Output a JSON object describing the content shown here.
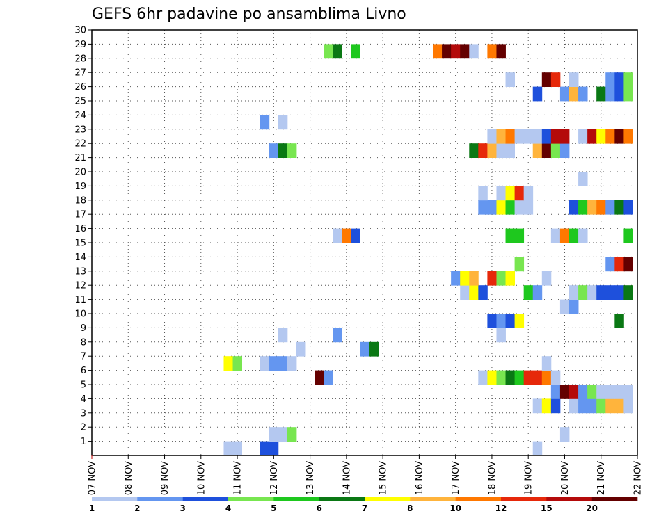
{
  "chart_data": {
    "type": "heatmap",
    "title": "GEFS 6hr padavine po ansamblima Livno",
    "xlabel": "",
    "ylabel": "",
    "x_ticks": [
      "07 NOV",
      "08 NOV",
      "09 NOV",
      "10 NOV",
      "11 NOV",
      "12 NOV",
      "13 NOV",
      "14 NOV",
      "15 NOV",
      "16 NOV",
      "17 NOV",
      "18 NOV",
      "19 NOV",
      "20 NOV",
      "21 NOV",
      "22 NOV"
    ],
    "y_ticks": [
      "1",
      "2",
      "3",
      "4",
      "5",
      "6",
      "7",
      "8",
      "9",
      "10",
      "11",
      "12",
      "13",
      "14",
      "15",
      "16",
      "17",
      "18",
      "19",
      "20",
      "21",
      "22",
      "23",
      "24",
      "25",
      "26",
      "27",
      "28",
      "29",
      "30"
    ],
    "ylim": [
      0,
      30
    ],
    "grid": true,
    "legend": {
      "placement": "bottom",
      "ticks": [
        "1",
        "2",
        "3",
        "4",
        "5",
        "6",
        "7",
        "8",
        "10",
        "12",
        "15",
        "20"
      ],
      "colors": [
        "#b4c8f0",
        "#6496f0",
        "#1e50dc",
        "#78e650",
        "#1ec81e",
        "#0a7814",
        "#ffff00",
        "#ffb43c",
        "#ff7800",
        "#e6280a",
        "#b40a0a",
        "#640000"
      ]
    },
    "note_x_units": "x = days since 07 NOV 00Z, 6-hour steps",
    "cells": [
      {
        "y": 0,
        "x": 3.75,
        "v": 1
      },
      {
        "y": 0,
        "x": 4.0,
        "v": 1
      },
      {
        "y": 0,
        "x": 4.75,
        "v": 3
      },
      {
        "y": 0,
        "x": 5.0,
        "v": 3
      },
      {
        "y": 0,
        "x": 12.25,
        "v": 1
      },
      {
        "y": 1,
        "x": 5.0,
        "v": 1
      },
      {
        "y": 1,
        "x": 5.25,
        "v": 1
      },
      {
        "y": 1,
        "x": 5.5,
        "v": 4
      },
      {
        "y": 1,
        "x": 13.0,
        "v": 1
      },
      {
        "y": 3,
        "x": 12.25,
        "v": 1
      },
      {
        "y": 3,
        "x": 12.5,
        "v": 7
      },
      {
        "y": 3,
        "x": 12.75,
        "v": 3
      },
      {
        "y": 3,
        "x": 13.25,
        "v": 1
      },
      {
        "y": 3,
        "x": 13.5,
        "v": 2
      },
      {
        "y": 3,
        "x": 13.75,
        "v": 2
      },
      {
        "y": 3,
        "x": 14.0,
        "v": 4
      },
      {
        "y": 3,
        "x": 14.25,
        "v": 9
      },
      {
        "y": 3,
        "x": 14.5,
        "v": 8
      },
      {
        "y": 3,
        "x": 14.75,
        "v": 1
      },
      {
        "y": 4,
        "x": 12.75,
        "v": 2
      },
      {
        "y": 4,
        "x": 13.0,
        "v": 20
      },
      {
        "y": 4,
        "x": 13.25,
        "v": 15
      },
      {
        "y": 4,
        "x": 13.5,
        "v": 2
      },
      {
        "y": 4,
        "x": 13.75,
        "v": 4
      },
      {
        "y": 4,
        "x": 14.0,
        "v": 1
      },
      {
        "y": 4,
        "x": 14.25,
        "v": 1
      },
      {
        "y": 4,
        "x": 14.5,
        "v": 1
      },
      {
        "y": 4,
        "x": 14.75,
        "v": 1
      },
      {
        "y": 5,
        "x": 6.25,
        "v": 20
      },
      {
        "y": 5,
        "x": 6.5,
        "v": 2
      },
      {
        "y": 5,
        "x": 10.75,
        "v": 1
      },
      {
        "y": 5,
        "x": 11.0,
        "v": 7
      },
      {
        "y": 5,
        "x": 11.25,
        "v": 4
      },
      {
        "y": 5,
        "x": 11.5,
        "v": 6
      },
      {
        "y": 5,
        "x": 11.75,
        "v": 5
      },
      {
        "y": 5,
        "x": 12.0,
        "v": 12
      },
      {
        "y": 5,
        "x": 12.25,
        "v": 12
      },
      {
        "y": 5,
        "x": 12.5,
        "v": 10
      },
      {
        "y": 5,
        "x": 12.75,
        "v": 1
      },
      {
        "y": 6,
        "x": 3.75,
        "v": 7
      },
      {
        "y": 6,
        "x": 4.0,
        "v": 4
      },
      {
        "y": 6,
        "x": 4.75,
        "v": 1
      },
      {
        "y": 6,
        "x": 5.0,
        "v": 2
      },
      {
        "y": 6,
        "x": 5.25,
        "v": 2
      },
      {
        "y": 6,
        "x": 5.5,
        "v": 1
      },
      {
        "y": 6,
        "x": 12.5,
        "v": 1
      },
      {
        "y": 7,
        "x": 5.75,
        "v": 1
      },
      {
        "y": 7,
        "x": 7.5,
        "v": 2
      },
      {
        "y": 7,
        "x": 7.75,
        "v": 6
      },
      {
        "y": 8,
        "x": 5.25,
        "v": 1
      },
      {
        "y": 8,
        "x": 6.75,
        "v": 2
      },
      {
        "y": 8,
        "x": 11.25,
        "v": 1
      },
      {
        "y": 9,
        "x": 11.0,
        "v": 3
      },
      {
        "y": 9,
        "x": 11.25,
        "v": 2
      },
      {
        "y": 9,
        "x": 11.5,
        "v": 3
      },
      {
        "y": 9,
        "x": 11.75,
        "v": 7
      },
      {
        "y": 9,
        "x": 14.5,
        "v": 6
      },
      {
        "y": 10,
        "x": 13.0,
        "v": 1
      },
      {
        "y": 10,
        "x": 13.25,
        "v": 2
      },
      {
        "y": 11,
        "x": 10.25,
        "v": 1
      },
      {
        "y": 11,
        "x": 10.5,
        "v": 7
      },
      {
        "y": 11,
        "x": 10.75,
        "v": 3
      },
      {
        "y": 11,
        "x": 12.0,
        "v": 5
      },
      {
        "y": 11,
        "x": 12.25,
        "v": 2
      },
      {
        "y": 11,
        "x": 13.25,
        "v": 1
      },
      {
        "y": 11,
        "x": 13.5,
        "v": 4
      },
      {
        "y": 11,
        "x": 13.75,
        "v": 1
      },
      {
        "y": 11,
        "x": 14.0,
        "v": 3
      },
      {
        "y": 11,
        "x": 14.25,
        "v": 3
      },
      {
        "y": 11,
        "x": 14.5,
        "v": 3
      },
      {
        "y": 11,
        "x": 14.75,
        "v": 6
      },
      {
        "y": 12,
        "x": 10.0,
        "v": 2
      },
      {
        "y": 12,
        "x": 10.25,
        "v": 7
      },
      {
        "y": 12,
        "x": 10.5,
        "v": 8
      },
      {
        "y": 12,
        "x": 11.0,
        "v": 12
      },
      {
        "y": 12,
        "x": 11.25,
        "v": 4
      },
      {
        "y": 12,
        "x": 11.5,
        "v": 7
      },
      {
        "y": 12,
        "x": 12.5,
        "v": 1
      },
      {
        "y": 13,
        "x": 11.75,
        "v": 4
      },
      {
        "y": 13,
        "x": 14.25,
        "v": 2
      },
      {
        "y": 13,
        "x": 14.5,
        "v": 12
      },
      {
        "y": 13,
        "x": 14.75,
        "v": 20
      },
      {
        "y": 15,
        "x": 6.75,
        "v": 1
      },
      {
        "y": 15,
        "x": 7.0,
        "v": 10
      },
      {
        "y": 15,
        "x": 7.25,
        "v": 3
      },
      {
        "y": 15,
        "x": 11.5,
        "v": 5
      },
      {
        "y": 15,
        "x": 11.75,
        "v": 5
      },
      {
        "y": 15,
        "x": 12.75,
        "v": 1
      },
      {
        "y": 15,
        "x": 13.0,
        "v": 10
      },
      {
        "y": 15,
        "x": 13.25,
        "v": 5
      },
      {
        "y": 15,
        "x": 13.5,
        "v": 1
      },
      {
        "y": 15,
        "x": 14.75,
        "v": 5
      },
      {
        "y": 17,
        "x": 10.75,
        "v": 2
      },
      {
        "y": 17,
        "x": 11.0,
        "v": 2
      },
      {
        "y": 17,
        "x": 11.25,
        "v": 7
      },
      {
        "y": 17,
        "x": 11.5,
        "v": 5
      },
      {
        "y": 17,
        "x": 11.75,
        "v": 1
      },
      {
        "y": 17,
        "x": 12.0,
        "v": 1
      },
      {
        "y": 17,
        "x": 13.25,
        "v": 3
      },
      {
        "y": 17,
        "x": 13.5,
        "v": 5
      },
      {
        "y": 17,
        "x": 13.75,
        "v": 8
      },
      {
        "y": 17,
        "x": 14.0,
        "v": 10
      },
      {
        "y": 17,
        "x": 14.25,
        "v": 2
      },
      {
        "y": 17,
        "x": 14.5,
        "v": 6
      },
      {
        "y": 17,
        "x": 14.75,
        "v": 3
      },
      {
        "y": 18,
        "x": 10.75,
        "v": 1
      },
      {
        "y": 18,
        "x": 11.25,
        "v": 1
      },
      {
        "y": 18,
        "x": 11.5,
        "v": 7
      },
      {
        "y": 18,
        "x": 11.75,
        "v": 12
      },
      {
        "y": 18,
        "x": 12.0,
        "v": 1
      },
      {
        "y": 19,
        "x": 13.5,
        "v": 1
      },
      {
        "y": 21,
        "x": 5.0,
        "v": 2
      },
      {
        "y": 21,
        "x": 5.25,
        "v": 6
      },
      {
        "y": 21,
        "x": 5.5,
        "v": 4
      },
      {
        "y": 21,
        "x": 10.5,
        "v": 6
      },
      {
        "y": 21,
        "x": 10.75,
        "v": 12
      },
      {
        "y": 21,
        "x": 11.0,
        "v": 8
      },
      {
        "y": 21,
        "x": 11.25,
        "v": 1
      },
      {
        "y": 21,
        "x": 11.5,
        "v": 1
      },
      {
        "y": 21,
        "x": 12.25,
        "v": 8
      },
      {
        "y": 21,
        "x": 12.5,
        "v": 20
      },
      {
        "y": 21,
        "x": 12.75,
        "v": 4
      },
      {
        "y": 21,
        "x": 13.0,
        "v": 2
      },
      {
        "y": 22,
        "x": 11.0,
        "v": 1
      },
      {
        "y": 22,
        "x": 11.25,
        "v": 8
      },
      {
        "y": 22,
        "x": 11.5,
        "v": 10
      },
      {
        "y": 22,
        "x": 11.75,
        "v": 1
      },
      {
        "y": 22,
        "x": 12.0,
        "v": 1
      },
      {
        "y": 22,
        "x": 12.25,
        "v": 1
      },
      {
        "y": 22,
        "x": 12.5,
        "v": 3
      },
      {
        "y": 22,
        "x": 12.75,
        "v": 15
      },
      {
        "y": 22,
        "x": 13.0,
        "v": 15
      },
      {
        "y": 22,
        "x": 13.5,
        "v": 1
      },
      {
        "y": 22,
        "x": 13.75,
        "v": 15
      },
      {
        "y": 22,
        "x": 14.0,
        "v": 7
      },
      {
        "y": 22,
        "x": 14.25,
        "v": 10
      },
      {
        "y": 22,
        "x": 14.5,
        "v": 20
      },
      {
        "y": 22,
        "x": 14.75,
        "v": 10
      },
      {
        "y": 23,
        "x": 4.75,
        "v": 2
      },
      {
        "y": 23,
        "x": 5.25,
        "v": 1
      },
      {
        "y": 25,
        "x": 12.25,
        "v": 3
      },
      {
        "y": 25,
        "x": 13.0,
        "v": 2
      },
      {
        "y": 25,
        "x": 13.25,
        "v": 8
      },
      {
        "y": 25,
        "x": 13.5,
        "v": 2
      },
      {
        "y": 25,
        "x": 14.0,
        "v": 6
      },
      {
        "y": 25,
        "x": 14.25,
        "v": 2
      },
      {
        "y": 25,
        "x": 14.5,
        "v": 3
      },
      {
        "y": 25,
        "x": 14.75,
        "v": 4
      },
      {
        "y": 26,
        "x": 11.5,
        "v": 1
      },
      {
        "y": 26,
        "x": 12.5,
        "v": 20
      },
      {
        "y": 26,
        "x": 12.75,
        "v": 12
      },
      {
        "y": 26,
        "x": 13.25,
        "v": 1
      },
      {
        "y": 26,
        "x": 14.25,
        "v": 2
      },
      {
        "y": 26,
        "x": 14.5,
        "v": 3
      },
      {
        "y": 26,
        "x": 14.75,
        "v": 4
      },
      {
        "y": 28,
        "x": 6.5,
        "v": 4
      },
      {
        "y": 28,
        "x": 6.75,
        "v": 6
      },
      {
        "y": 28,
        "x": 7.25,
        "v": 5
      },
      {
        "y": 28,
        "x": 9.5,
        "v": 10
      },
      {
        "y": 28,
        "x": 9.75,
        "v": 20
      },
      {
        "y": 28,
        "x": 10.0,
        "v": 15
      },
      {
        "y": 28,
        "x": 10.25,
        "v": 20
      },
      {
        "y": 28,
        "x": 10.5,
        "v": 1
      },
      {
        "y": 28,
        "x": 11.0,
        "v": 10
      },
      {
        "y": 28,
        "x": 11.25,
        "v": 20
      }
    ]
  }
}
